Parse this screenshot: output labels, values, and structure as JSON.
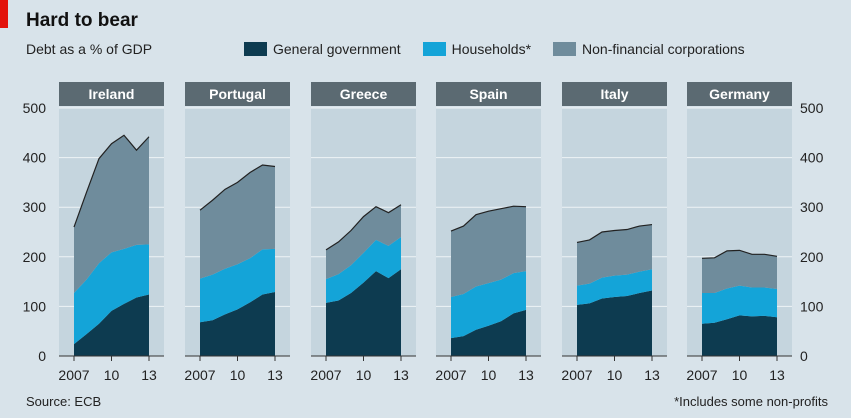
{
  "header": {
    "title": "Hard to bear",
    "subtitle": "Debt as a % of GDP"
  },
  "footer": {
    "source": "Source: ECB",
    "note": "*Includes some non-profits"
  },
  "colors": {
    "general_government": "#0d3b50",
    "households": "#14a4d8",
    "nonfinancial": "#6f8c9c",
    "panel_bg": "#c5d5de",
    "panel_header": "#5b6a72"
  },
  "chart_data": {
    "type": "area",
    "stacked": true,
    "x": [
      2007,
      2008,
      2009,
      2010,
      2011,
      2012,
      2013
    ],
    "x_tick_labels": [
      "2007",
      "10",
      "13"
    ],
    "ylim": [
      0,
      500
    ],
    "y_ticks": [
      0,
      100,
      200,
      300,
      400,
      500
    ],
    "grid": true,
    "legend": {
      "position": "top",
      "entries": [
        "General government",
        "Households*",
        "Non-financial corporations"
      ]
    },
    "panels": [
      {
        "name": "Ireland",
        "series": [
          {
            "name": "General government",
            "values": [
              24,
              44,
              65,
              91,
              105,
              118,
              124
            ]
          },
          {
            "name": "Households*",
            "values": [
              103,
              110,
              122,
              118,
              111,
              106,
              101
            ]
          },
          {
            "name": "Non-financial corporations",
            "values": [
              133,
              176,
              211,
              219,
              229,
              191,
              217
            ]
          }
        ]
      },
      {
        "name": "Portugal",
        "series": [
          {
            "name": "General government",
            "values": [
              68,
              72,
              84,
              94,
              108,
              124,
              129
            ]
          },
          {
            "name": "Households*",
            "values": [
              88,
              92,
              92,
              91,
              89,
              91,
              87
            ]
          },
          {
            "name": "Non-financial corporations",
            "values": [
              138,
              150,
              160,
              165,
              173,
              170,
              166
            ]
          }
        ]
      },
      {
        "name": "Greece",
        "series": [
          {
            "name": "General government",
            "values": [
              107,
              112,
              127,
              148,
              171,
              157,
              175
            ]
          },
          {
            "name": "Households*",
            "values": [
              48,
              53,
              56,
              60,
              63,
              65,
              65
            ]
          },
          {
            "name": "Non-financial corporations",
            "values": [
              59,
              65,
              70,
              73,
              67,
              67,
              65
            ]
          }
        ]
      },
      {
        "name": "Spain",
        "series": [
          {
            "name": "General government",
            "values": [
              36,
              40,
              53,
              61,
              70,
              86,
              93
            ]
          },
          {
            "name": "Households*",
            "values": [
              83,
              85,
              87,
              86,
              84,
              81,
              78
            ]
          },
          {
            "name": "Non-financial corporations",
            "values": [
              133,
              137,
              145,
              145,
              143,
              135,
              130
            ]
          }
        ]
      },
      {
        "name": "Italy",
        "series": [
          {
            "name": "General government",
            "values": [
              103,
              106,
              116,
              119,
              121,
              127,
              132
            ]
          },
          {
            "name": "Households*",
            "values": [
              39,
              40,
              42,
              43,
              43,
              43,
              43
            ]
          },
          {
            "name": "Non-financial corporations",
            "values": [
              87,
              88,
              92,
              91,
              91,
              92,
              90
            ]
          }
        ]
      },
      {
        "name": "Germany",
        "series": [
          {
            "name": "General government",
            "values": [
              65,
              67,
              74,
              82,
              80,
              81,
              78
            ]
          },
          {
            "name": "Households*",
            "values": [
              62,
              60,
              62,
              60,
              58,
              57,
              57
            ]
          },
          {
            "name": "Non-financial corporations",
            "values": [
              70,
              71,
              76,
              71,
              67,
              67,
              66
            ]
          }
        ]
      }
    ]
  }
}
